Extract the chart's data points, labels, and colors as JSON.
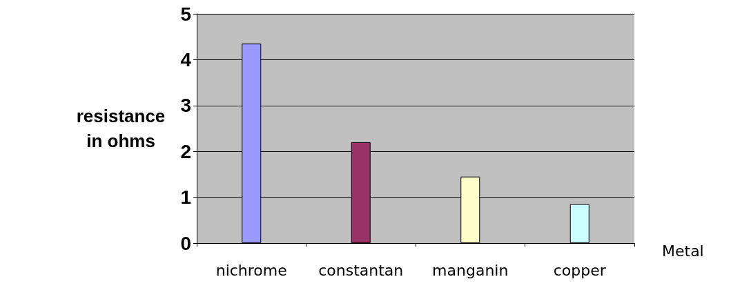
{
  "chart_data": {
    "type": "bar",
    "xlabel": "Metal",
    "ylabel": "resistance\nin ohms",
    "categories": [
      "nichrome",
      "constantan",
      "manganin",
      "copper"
    ],
    "values": [
      4.35,
      2.2,
      1.45,
      0.85
    ],
    "colors": [
      "#9999ff",
      "#993366",
      "#ffffcc",
      "#ccffff"
    ],
    "ylim": [
      0,
      5
    ],
    "yticks": [
      0,
      1,
      2,
      3,
      4,
      5
    ],
    "grid": "y"
  }
}
